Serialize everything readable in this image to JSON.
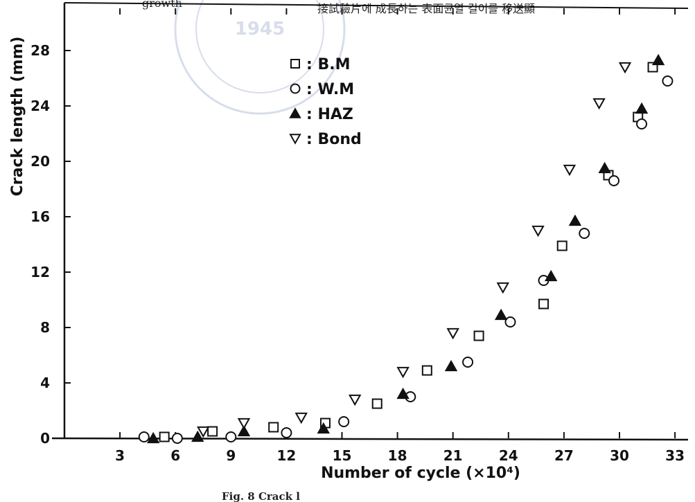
{
  "header_left": "growth",
  "header_right": "接試驗片에 成長하는 表面균열 길이를 移送顯",
  "caption_fragment": "Fig. 8  Crack l",
  "watermark": {
    "year": "1945",
    "color": "#b8c2dc"
  },
  "chart_data": {
    "type": "scatter",
    "xlabel": "Number of cycle (×10⁴)",
    "ylabel": "Crack length (mm)",
    "xlim": [
      0,
      35
    ],
    "ylim": [
      0,
      30
    ],
    "x_ticks": [
      3,
      6,
      9,
      12,
      15,
      18,
      21,
      24,
      27,
      30,
      33
    ],
    "y_ticks": [
      0,
      4,
      8,
      12,
      16,
      20,
      24,
      28
    ],
    "legend_position": "top-center",
    "series": [
      {
        "name": "B.M",
        "marker": "square",
        "points": [
          [
            5.4,
            0.1
          ],
          [
            8.0,
            0.5
          ],
          [
            11.3,
            0.8
          ],
          [
            14.1,
            1.1
          ],
          [
            16.9,
            2.5
          ],
          [
            19.6,
            4.9
          ],
          [
            22.4,
            7.4
          ],
          [
            25.9,
            9.7
          ],
          [
            26.9,
            13.9
          ],
          [
            29.4,
            19.0
          ],
          [
            31.0,
            23.2
          ],
          [
            31.8,
            26.8
          ]
        ]
      },
      {
        "name": "W.M",
        "marker": "circle",
        "points": [
          [
            4.3,
            0.1
          ],
          [
            6.1,
            0.0
          ],
          [
            9.0,
            0.1
          ],
          [
            12.0,
            0.4
          ],
          [
            15.1,
            1.2
          ],
          [
            18.7,
            3.0
          ],
          [
            21.8,
            5.5
          ],
          [
            24.1,
            8.4
          ],
          [
            25.9,
            11.4
          ],
          [
            28.1,
            14.8
          ],
          [
            29.7,
            18.6
          ],
          [
            31.2,
            22.7
          ],
          [
            32.6,
            25.8
          ]
        ]
      },
      {
        "name": "HAZ",
        "marker": "triangle-up",
        "points": [
          [
            4.8,
            0.0
          ],
          [
            7.2,
            0.1
          ],
          [
            9.7,
            0.5
          ],
          [
            14.0,
            0.7
          ],
          [
            18.3,
            3.2
          ],
          [
            20.9,
            5.2
          ],
          [
            23.6,
            8.9
          ],
          [
            26.3,
            11.7
          ],
          [
            27.6,
            15.7
          ],
          [
            29.2,
            19.5
          ],
          [
            31.2,
            23.8
          ],
          [
            32.1,
            27.3
          ]
        ]
      },
      {
        "name": "Bond",
        "marker": "triangle-down",
        "points": [
          [
            7.5,
            0.5
          ],
          [
            9.7,
            1.1
          ],
          [
            12.8,
            1.5
          ],
          [
            15.7,
            2.8
          ],
          [
            18.3,
            4.8
          ],
          [
            21.0,
            7.6
          ],
          [
            23.7,
            10.9
          ],
          [
            25.6,
            15.0
          ],
          [
            27.3,
            19.4
          ],
          [
            28.9,
            24.2
          ],
          [
            30.3,
            26.8
          ]
        ]
      }
    ]
  }
}
